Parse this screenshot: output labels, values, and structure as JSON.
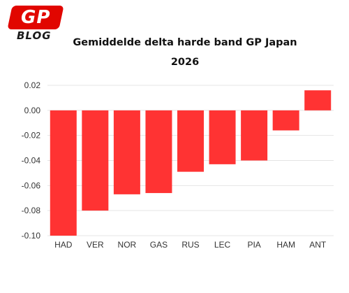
{
  "logo": {
    "mark": "GP",
    "word": "BLOG"
  },
  "chart_data": {
    "type": "bar",
    "title": [
      "Gemiddelde delta harde band GP Japan",
      "2026"
    ],
    "xlabel": "",
    "ylabel": "",
    "categories": [
      "HAD",
      "VER",
      "NOR",
      "GAS",
      "RUS",
      "LEC",
      "PIA",
      "HAM",
      "ANT"
    ],
    "values": [
      -0.1,
      -0.08,
      -0.067,
      -0.066,
      -0.049,
      -0.043,
      -0.04,
      -0.016,
      0.016
    ],
    "yticks": [
      "0.02",
      "0.00",
      "-0.02",
      "-0.04",
      "-0.06",
      "-0.08",
      "-0.10"
    ],
    "ylim": [
      -0.1,
      0.02
    ],
    "grid": true,
    "bar_color": "#ff3333"
  }
}
